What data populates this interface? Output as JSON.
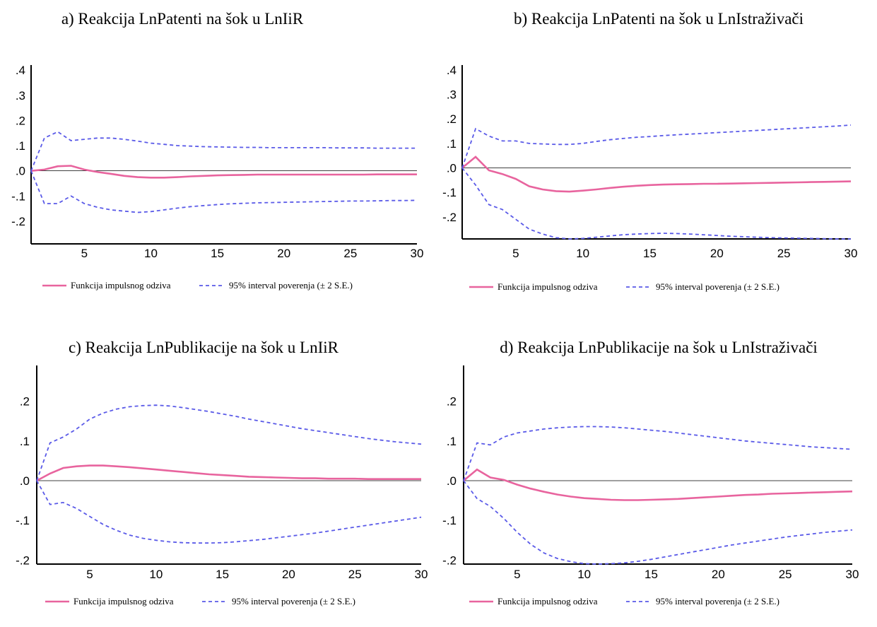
{
  "legend": {
    "irf_label": "Funkcija impulsnog odziva",
    "ci_label": "95% interval poverenja (± 2 S.E.)"
  },
  "colors": {
    "irf": "#e8649e",
    "ci": "#5a5ae8",
    "axis": "#000000"
  },
  "chart_data": [
    {
      "type": "line",
      "title": "a) Reakcija LnPatenti na šok u LnIiR",
      "ylim": [
        -0.29,
        0.42
      ],
      "yticks": [
        0.4,
        0.3,
        0.2,
        0.1,
        0.0,
        -0.1,
        -0.2
      ],
      "ytick_labels": [
        ".4",
        ".3",
        ".2",
        ".1",
        ".0",
        "-.1",
        "-.2"
      ],
      "xlim": [
        1,
        30
      ],
      "xticks": [
        5,
        10,
        15,
        20,
        25,
        30
      ],
      "x": [
        1,
        2,
        3,
        4,
        5,
        6,
        7,
        8,
        9,
        10,
        11,
        12,
        13,
        14,
        15,
        16,
        17,
        18,
        19,
        20,
        21,
        22,
        23,
        24,
        25,
        26,
        27,
        28,
        29,
        30
      ],
      "series": [
        {
          "name": "Funkcija impulsnog odziva",
          "style": "solid",
          "values": [
            0.0,
            0.005,
            0.018,
            0.02,
            0.005,
            -0.005,
            -0.012,
            -0.02,
            -0.025,
            -0.027,
            -0.027,
            -0.025,
            -0.022,
            -0.02,
            -0.018,
            -0.017,
            -0.016,
            -0.015,
            -0.015,
            -0.015,
            -0.015,
            -0.015,
            -0.015,
            -0.015,
            -0.015,
            -0.015,
            -0.014,
            -0.014,
            -0.014,
            -0.014
          ]
        },
        {
          "name": "95% interval poverenja (± 2 S.E.)",
          "style": "dashed",
          "values": [
            0.0,
            0.13,
            0.155,
            0.12,
            0.125,
            0.13,
            0.13,
            0.125,
            0.118,
            0.11,
            0.105,
            0.1,
            0.098,
            0.096,
            0.095,
            0.094,
            0.093,
            0.093,
            0.092,
            0.092,
            0.092,
            0.092,
            0.092,
            0.091,
            0.091,
            0.091,
            0.09,
            0.09,
            0.09,
            0.09
          ]
        },
        {
          "name": "95% interval poverenja (± 2 S.E.)",
          "style": "dashed",
          "values": [
            0.0,
            -0.13,
            -0.13,
            -0.1,
            -0.13,
            -0.145,
            -0.155,
            -0.16,
            -0.165,
            -0.162,
            -0.155,
            -0.148,
            -0.142,
            -0.138,
            -0.134,
            -0.131,
            -0.129,
            -0.127,
            -0.126,
            -0.125,
            -0.124,
            -0.123,
            -0.122,
            -0.121,
            -0.12,
            -0.12,
            -0.119,
            -0.118,
            -0.118,
            -0.117
          ]
        }
      ]
    },
    {
      "type": "line",
      "title": "b) Reakcija LnPatenti na šok u LnIstraživači",
      "ylim": [
        -0.29,
        0.42
      ],
      "yticks": [
        0.4,
        0.3,
        0.2,
        0.1,
        0.0,
        -0.1,
        -0.2
      ],
      "ytick_labels": [
        ".4",
        ".3",
        ".2",
        ".1",
        ".0",
        "-.1",
        "-.2"
      ],
      "xlim": [
        1,
        30
      ],
      "xticks": [
        5,
        10,
        15,
        20,
        25,
        30
      ],
      "x": [
        1,
        2,
        3,
        4,
        5,
        6,
        7,
        8,
        9,
        10,
        11,
        12,
        13,
        14,
        15,
        16,
        17,
        18,
        19,
        20,
        21,
        22,
        23,
        24,
        25,
        26,
        27,
        28,
        29,
        30
      ],
      "series": [
        {
          "name": "Funkcija impulsnog odziva",
          "style": "solid",
          "values": [
            0.0,
            0.045,
            -0.01,
            -0.025,
            -0.045,
            -0.075,
            -0.088,
            -0.095,
            -0.097,
            -0.093,
            -0.088,
            -0.082,
            -0.077,
            -0.073,
            -0.07,
            -0.068,
            -0.067,
            -0.066,
            -0.065,
            -0.065,
            -0.064,
            -0.063,
            -0.062,
            -0.061,
            -0.06,
            -0.059,
            -0.058,
            -0.057,
            -0.056,
            -0.055
          ]
        },
        {
          "name": "95% interval poverenja (± 2 S.E.)",
          "style": "dashed",
          "values": [
            0.0,
            0.16,
            0.13,
            0.11,
            0.11,
            0.1,
            0.098,
            0.096,
            0.096,
            0.1,
            0.108,
            0.115,
            0.12,
            0.125,
            0.128,
            0.132,
            0.135,
            0.138,
            0.141,
            0.144,
            0.147,
            0.15,
            0.153,
            0.156,
            0.159,
            0.162,
            0.165,
            0.168,
            0.171,
            0.175
          ]
        },
        {
          "name": "95% interval poverenja (± 2 S.E.)",
          "style": "dashed",
          "values": [
            0.0,
            -0.07,
            -0.15,
            -0.17,
            -0.21,
            -0.25,
            -0.27,
            -0.285,
            -0.29,
            -0.288,
            -0.283,
            -0.278,
            -0.273,
            -0.27,
            -0.268,
            -0.267,
            -0.268,
            -0.27,
            -0.273,
            -0.276,
            -0.279,
            -0.281,
            -0.283,
            -0.285,
            -0.286,
            -0.287,
            -0.288,
            -0.289,
            -0.29,
            -0.29
          ]
        }
      ]
    },
    {
      "type": "line",
      "title": "c) Reakcija LnPublikacije na šok u LnIiR",
      "ylim": [
        -0.21,
        0.29
      ],
      "yticks": [
        0.2,
        0.1,
        0.0,
        -0.1,
        -0.2
      ],
      "ytick_labels": [
        ".2",
        ".1",
        ".0",
        "-.1",
        "-.2"
      ],
      "xlim": [
        1,
        30
      ],
      "xticks": [
        5,
        10,
        15,
        20,
        25,
        30
      ],
      "x": [
        1,
        2,
        3,
        4,
        5,
        6,
        7,
        8,
        9,
        10,
        11,
        12,
        13,
        14,
        15,
        16,
        17,
        18,
        19,
        20,
        21,
        22,
        23,
        24,
        25,
        26,
        27,
        28,
        29,
        30
      ],
      "series": [
        {
          "name": "Funkcija impulsnog odziva",
          "style": "solid",
          "values": [
            0.0,
            0.018,
            0.032,
            0.036,
            0.038,
            0.038,
            0.036,
            0.034,
            0.031,
            0.028,
            0.025,
            0.022,
            0.019,
            0.016,
            0.014,
            0.012,
            0.01,
            0.009,
            0.008,
            0.007,
            0.006,
            0.006,
            0.005,
            0.005,
            0.005,
            0.004,
            0.004,
            0.004,
            0.004,
            0.004
          ]
        },
        {
          "name": "95% interval poverenja (± 2 S.E.)",
          "style": "dashed",
          "values": [
            0.0,
            0.095,
            0.11,
            0.13,
            0.155,
            0.17,
            0.18,
            0.186,
            0.189,
            0.19,
            0.188,
            0.184,
            0.179,
            0.174,
            0.168,
            0.162,
            0.155,
            0.149,
            0.143,
            0.137,
            0.131,
            0.126,
            0.121,
            0.116,
            0.111,
            0.106,
            0.102,
            0.098,
            0.095,
            0.092
          ]
        },
        {
          "name": "95% interval poverenja (± 2 S.E.)",
          "style": "dashed",
          "values": [
            0.0,
            -0.06,
            -0.055,
            -0.07,
            -0.09,
            -0.11,
            -0.125,
            -0.137,
            -0.145,
            -0.15,
            -0.154,
            -0.156,
            -0.157,
            -0.157,
            -0.156,
            -0.154,
            -0.151,
            -0.148,
            -0.144,
            -0.14,
            -0.136,
            -0.132,
            -0.127,
            -0.122,
            -0.117,
            -0.112,
            -0.107,
            -0.102,
            -0.097,
            -0.092
          ]
        }
      ]
    },
    {
      "type": "line",
      "title": "d) Reakcija LnPublikacije na šok u LnIstraživači",
      "ylim": [
        -0.21,
        0.29
      ],
      "yticks": [
        0.2,
        0.1,
        0.0,
        -0.1,
        -0.2
      ],
      "ytick_labels": [
        ".2",
        ".1",
        ".0",
        "-.1",
        "-.2"
      ],
      "xlim": [
        1,
        30
      ],
      "xticks": [
        5,
        10,
        15,
        20,
        25,
        30
      ],
      "x": [
        1,
        2,
        3,
        4,
        5,
        6,
        7,
        8,
        9,
        10,
        11,
        12,
        13,
        14,
        15,
        16,
        17,
        18,
        19,
        20,
        21,
        22,
        23,
        24,
        25,
        26,
        27,
        28,
        29,
        30
      ],
      "series": [
        {
          "name": "Funkcija impulsnog odziva",
          "style": "solid",
          "values": [
            0.0,
            0.028,
            0.008,
            0.002,
            -0.01,
            -0.02,
            -0.028,
            -0.035,
            -0.04,
            -0.044,
            -0.046,
            -0.048,
            -0.049,
            -0.049,
            -0.048,
            -0.047,
            -0.046,
            -0.044,
            -0.042,
            -0.04,
            -0.038,
            -0.036,
            -0.035,
            -0.033,
            -0.032,
            -0.031,
            -0.03,
            -0.029,
            -0.028,
            -0.027
          ]
        },
        {
          "name": "95% interval poverenja (± 2 S.E.)",
          "style": "dashed",
          "values": [
            0.0,
            0.095,
            0.09,
            0.11,
            0.12,
            0.125,
            0.13,
            0.133,
            0.135,
            0.136,
            0.136,
            0.135,
            0.133,
            0.13,
            0.127,
            0.124,
            0.12,
            0.116,
            0.112,
            0.108,
            0.104,
            0.1,
            0.097,
            0.094,
            0.091,
            0.088,
            0.085,
            0.083,
            0.081,
            0.079
          ]
        },
        {
          "name": "95% interval poverenja (± 2 S.E.)",
          "style": "dashed",
          "values": [
            0.0,
            -0.045,
            -0.065,
            -0.095,
            -0.13,
            -0.16,
            -0.182,
            -0.196,
            -0.204,
            -0.209,
            -0.21,
            -0.209,
            -0.207,
            -0.203,
            -0.198,
            -0.192,
            -0.186,
            -0.18,
            -0.174,
            -0.168,
            -0.162,
            -0.157,
            -0.152,
            -0.147,
            -0.142,
            -0.138,
            -0.134,
            -0.13,
            -0.127,
            -0.124
          ]
        }
      ]
    }
  ]
}
